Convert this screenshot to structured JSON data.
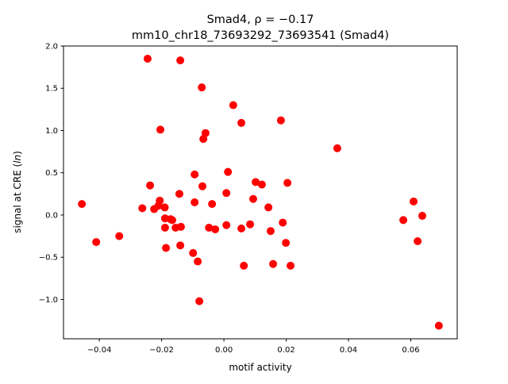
{
  "chart_data": {
    "type": "scatter",
    "title_line1": "Smad4, ρ = −0.17",
    "title_line2": "mm10_chr18_73693292_73693541 (Smad4)",
    "xlabel": "motif activity",
    "ylabel_prefix": "signal at CRE (",
    "ylabel_italic": "ln",
    "ylabel_suffix": ")",
    "xlim": [
      -0.0515,
      0.0749
    ],
    "ylim": [
      -1.465,
      2.0
    ],
    "xticks": [
      -0.04,
      -0.02,
      0.0,
      0.02,
      0.04,
      0.06
    ],
    "xtick_labels": [
      "−0.04",
      "−0.02",
      "0.00",
      "0.02",
      "0.04",
      "0.06"
    ],
    "yticks": [
      -1.0,
      -0.5,
      0.0,
      0.5,
      1.0,
      1.5,
      2.0
    ],
    "ytick_labels": [
      "−1.0",
      "−0.5",
      "0.0",
      "0.5",
      "1.0",
      "1.5",
      "2.0"
    ],
    "grid": false,
    "marker_color": "#ff0000",
    "points": [
      [
        -0.0456,
        0.13
      ],
      [
        -0.041,
        -0.32
      ],
      [
        -0.0336,
        -0.25
      ],
      [
        -0.0245,
        1.85
      ],
      [
        -0.014,
        1.83
      ],
      [
        -0.0071,
        1.51
      ],
      [
        0.003,
        1.3
      ],
      [
        0.0056,
        1.09
      ],
      [
        0.0183,
        1.12
      ],
      [
        -0.0204,
        1.01
      ],
      [
        -0.0059,
        0.97
      ],
      [
        -0.0066,
        0.9
      ],
      [
        0.0364,
        0.79
      ],
      [
        -0.0094,
        0.48
      ],
      [
        0.0013,
        0.51
      ],
      [
        -0.0237,
        0.35
      ],
      [
        0.0102,
        0.39
      ],
      [
        0.0122,
        0.36
      ],
      [
        0.0204,
        0.38
      ],
      [
        -0.0069,
        0.34
      ],
      [
        -0.0143,
        0.25
      ],
      [
        0.0008,
        0.26
      ],
      [
        -0.0262,
        0.08
      ],
      [
        -0.0224,
        0.07
      ],
      [
        -0.0206,
        0.17
      ],
      [
        -0.021,
        0.11
      ],
      [
        -0.019,
        0.09
      ],
      [
        -0.0094,
        0.15
      ],
      [
        -0.0038,
        0.13
      ],
      [
        0.0094,
        0.19
      ],
      [
        0.0143,
        0.09
      ],
      [
        -0.0189,
        -0.04
      ],
      [
        -0.0166,
        -0.06
      ],
      [
        -0.0171,
        -0.05
      ],
      [
        -0.0189,
        -0.15
      ],
      [
        -0.0155,
        -0.15
      ],
      [
        -0.0138,
        -0.14
      ],
      [
        -0.0048,
        -0.15
      ],
      [
        -0.0028,
        -0.17
      ],
      [
        0.0008,
        -0.12
      ],
      [
        0.0056,
        -0.16
      ],
      [
        0.0084,
        -0.11
      ],
      [
        0.015,
        -0.19
      ],
      [
        0.0189,
        -0.09
      ],
      [
        -0.0186,
        -0.39
      ],
      [
        -0.014,
        -0.36
      ],
      [
        -0.0099,
        -0.45
      ],
      [
        -0.0084,
        -0.55
      ],
      [
        0.0064,
        -0.6
      ],
      [
        0.0158,
        -0.58
      ],
      [
        0.0214,
        -0.6
      ],
      [
        0.0199,
        -0.33
      ],
      [
        -0.0079,
        -1.02
      ],
      [
        0.0576,
        -0.06
      ],
      [
        0.0609,
        0.16
      ],
      [
        0.0637,
        -0.01
      ],
      [
        0.0622,
        -0.31
      ],
      [
        0.069,
        -1.31
      ]
    ]
  }
}
